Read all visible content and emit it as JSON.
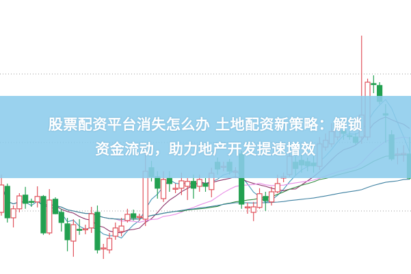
{
  "title": {
    "line1": "股票配资平台消失怎么办 土地配资新策略：解锁",
    "line2": "资金流动，助力地产开发提速增效"
  },
  "colors": {
    "up": "#e0505a",
    "down": "#22a050",
    "banner": "#8ccbec",
    "grid": "#999999"
  },
  "chart_data": {
    "type": "candlestick",
    "grid": "dotted horizontal",
    "ylim": [
      0,
      100
    ],
    "gridlines": [
      73,
      48,
      23
    ],
    "candles": [
      [
        22.5,
        32.5,
        36.3,
        21.3
      ],
      [
        32,
        20.5,
        33,
        18.8
      ],
      [
        20.5,
        23.8,
        25,
        17
      ],
      [
        23.8,
        28.5,
        29.5,
        22.5
      ],
      [
        28.8,
        25.8,
        31.8,
        23.8
      ],
      [
        26.5,
        26.3,
        27.5,
        24.5
      ],
      [
        26.3,
        28.3,
        32,
        24.3
      ],
      [
        28.3,
        15,
        28.8,
        14.3
      ],
      [
        15,
        27,
        31,
        14.3
      ],
      [
        27.3,
        22,
        28,
        21.8
      ],
      [
        22.5,
        18.8,
        23.8,
        15.5
      ],
      [
        18.3,
        12.5,
        20.5,
        8.3
      ],
      [
        12,
        18,
        20,
        6.3
      ],
      [
        16.3,
        16,
        20,
        14.3
      ],
      [
        16.3,
        16.5,
        18,
        14.5
      ],
      [
        16.8,
        22,
        24.5,
        15
      ],
      [
        22.5,
        8.8,
        25,
        7.5
      ],
      [
        9.5,
        9.5,
        11,
        5.5
      ],
      [
        8.8,
        13,
        15,
        7.5
      ],
      [
        13.8,
        16.8,
        18.8,
        12.5
      ],
      [
        15.5,
        17.5,
        20.5,
        13.8
      ],
      [
        19.5,
        21.8,
        23.8,
        18.8
      ],
      [
        22,
        20.5,
        23.5,
        19.5
      ],
      [
        21,
        21,
        22,
        19.5
      ],
      [
        20,
        37.5,
        46.3,
        17.5
      ],
      [
        38.8,
        35.5,
        41.3,
        33.8
      ],
      [
        35.5,
        31.3,
        37.5,
        27.5
      ],
      [
        27.5,
        34.5,
        37.5,
        26.3
      ],
      [
        35,
        33,
        37.5,
        30
      ],
      [
        31.3,
        31.3,
        33,
        29.5
      ],
      [
        31.3,
        34,
        37,
        28.8
      ],
      [
        32,
        33.8,
        35,
        27
      ],
      [
        33.8,
        31.3,
        36.3,
        27.5
      ],
      [
        32,
        34.5,
        36.3,
        30
      ],
      [
        33,
        32,
        35,
        30
      ],
      [
        30.8,
        36.8,
        38.8,
        28
      ],
      [
        40.8,
        38.3,
        42.5,
        36.3
      ],
      [
        39,
        39.3,
        41,
        37.5
      ],
      [
        40.8,
        37.5,
        42,
        36.3
      ],
      [
        37.5,
        37.5,
        39,
        35
      ],
      [
        43.8,
        25.5,
        45,
        23.8
      ],
      [
        24.5,
        24.5,
        26,
        22
      ],
      [
        22.5,
        24.5,
        26.3,
        19.3
      ],
      [
        24.3,
        29.3,
        31.3,
        23.8
      ],
      [
        28.3,
        26.8,
        30,
        23
      ],
      [
        26.3,
        30,
        31.8,
        25
      ],
      [
        30,
        33,
        36.3,
        29.5
      ],
      [
        35,
        35.5,
        37,
        33.5
      ],
      [
        36.3,
        43,
        46.3,
        35.5
      ],
      [
        40.8,
        38.5,
        43,
        36
      ],
      [
        41.5,
        39.8,
        43.5,
        37
      ],
      [
        41,
        39.5,
        42.5,
        37.5
      ],
      [
        40.5,
        39.5,
        43,
        37
      ],
      [
        39.3,
        47.5,
        50,
        38
      ],
      [
        46.3,
        48.8,
        51.3,
        45
      ],
      [
        47.5,
        52,
        55,
        46.3
      ],
      [
        50,
        53.3,
        55.5,
        48.8
      ],
      [
        52.3,
        51.3,
        54.5,
        49
      ],
      [
        50.5,
        50.3,
        52,
        49
      ],
      [
        50,
        48,
        51.5,
        47
      ],
      [
        50,
        58,
        87,
        47.5
      ],
      [
        50,
        70,
        71.3,
        48.8
      ],
      [
        69.5,
        69.3,
        72.5,
        66
      ],
      [
        68.8,
        63,
        70,
        62
      ],
      [
        58.5,
        58,
        62,
        48
      ],
      [
        50.8,
        42,
        52.5,
        41.3
      ],
      [
        43.8,
        43.8,
        46,
        40
      ],
      [
        43.8,
        44,
        47,
        41
      ],
      [
        43.8,
        35,
        50,
        34.5
      ]
    ],
    "moving_averages": [
      {
        "period": 5,
        "color": "#3e93b5"
      },
      {
        "period": 10,
        "color": "#8a2e66"
      },
      {
        "period": 20,
        "color": "#e88be6"
      },
      {
        "period": 30,
        "color": "#2f8a3e"
      },
      {
        "period": 60,
        "color": "#3c7fa0"
      }
    ]
  }
}
